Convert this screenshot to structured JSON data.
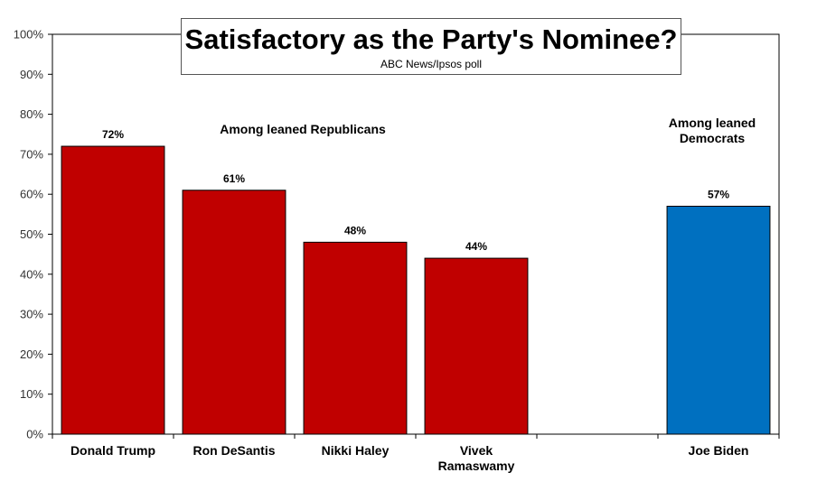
{
  "chart_data": {
    "type": "bar",
    "title": "Satisfactory as the Party's Nominee?",
    "subtitle": "ABC News/Ipsos poll",
    "categories": [
      "Donald Trump",
      "Ron DeSantis",
      "Nikki Haley",
      "Vivek Ramaswamy",
      "",
      "Joe Biden"
    ],
    "values": [
      72,
      61,
      48,
      44,
      null,
      57
    ],
    "data_labels": [
      "72%",
      "61%",
      "48%",
      "44%",
      "",
      "57%"
    ],
    "bar_colors": [
      "#c00000",
      "#c00000",
      "#c00000",
      "#c00000",
      "",
      "#0070c0"
    ],
    "ylim": [
      0,
      100
    ],
    "yticks": [
      "0%",
      "10%",
      "20%",
      "30%",
      "40%",
      "50%",
      "60%",
      "70%",
      "80%",
      "90%",
      "100%"
    ],
    "xlabel": "",
    "ylabel": "",
    "grid": false,
    "annotations": [
      "Among leaned Republicans",
      "Among leaned Democrats"
    ]
  }
}
